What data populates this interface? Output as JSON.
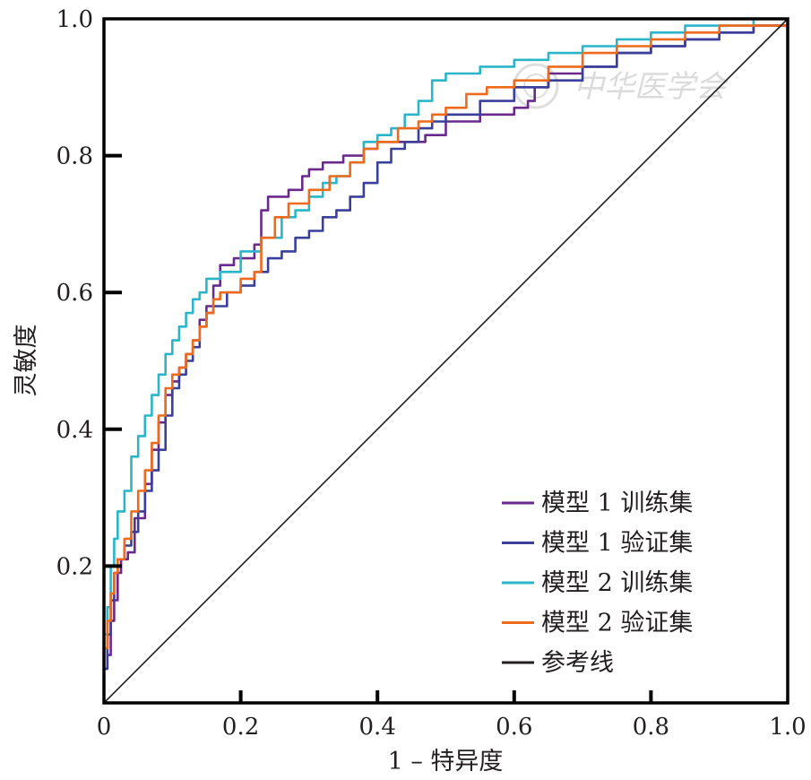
{
  "chart_data": {
    "type": "line",
    "xlabel": "1 – 特异度",
    "ylabel": "灵敏度",
    "xlim": [
      0,
      1
    ],
    "ylim": [
      0,
      1
    ],
    "x_ticks": [
      "0",
      "0.2",
      "0.4",
      "0.6",
      "0.8",
      "1.0"
    ],
    "y_ticks": [
      "0.2",
      "0.4",
      "0.6",
      "0.8",
      "1.0"
    ],
    "grid": false,
    "legend_position": "bottom-right",
    "watermark": "中华医学会",
    "series": [
      {
        "name": "模型 1 训练集",
        "color": "#6a2a8c",
        "points": [
          [
            0,
            0.05
          ],
          [
            0.005,
            0.07
          ],
          [
            0.01,
            0.12
          ],
          [
            0.015,
            0.15
          ],
          [
            0.02,
            0.19
          ],
          [
            0.025,
            0.21
          ],
          [
            0.035,
            0.22
          ],
          [
            0.045,
            0.27
          ],
          [
            0.06,
            0.32
          ],
          [
            0.07,
            0.37
          ],
          [
            0.08,
            0.41
          ],
          [
            0.09,
            0.45
          ],
          [
            0.1,
            0.47
          ],
          [
            0.11,
            0.49
          ],
          [
            0.12,
            0.51
          ],
          [
            0.13,
            0.53
          ],
          [
            0.14,
            0.56
          ],
          [
            0.15,
            0.58
          ],
          [
            0.16,
            0.61
          ],
          [
            0.17,
            0.64
          ],
          [
            0.19,
            0.65
          ],
          [
            0.22,
            0.67
          ],
          [
            0.23,
            0.72
          ],
          [
            0.24,
            0.74
          ],
          [
            0.27,
            0.75
          ],
          [
            0.29,
            0.77
          ],
          [
            0.3,
            0.78
          ],
          [
            0.32,
            0.79
          ],
          [
            0.35,
            0.8
          ],
          [
            0.38,
            0.81
          ],
          [
            0.4,
            0.82
          ],
          [
            0.43,
            0.82
          ],
          [
            0.47,
            0.83
          ],
          [
            0.5,
            0.85
          ],
          [
            0.55,
            0.86
          ],
          [
            0.6,
            0.87
          ],
          [
            0.62,
            0.88
          ],
          [
            0.63,
            0.9
          ],
          [
            0.65,
            0.92
          ],
          [
            0.7,
            0.93
          ],
          [
            0.75,
            0.95
          ],
          [
            0.8,
            0.96
          ],
          [
            0.85,
            0.97
          ],
          [
            0.9,
            0.98
          ],
          [
            0.95,
            0.99
          ],
          [
            1,
            1
          ]
        ]
      },
      {
        "name": "模型 1 验证集",
        "color": "#3a3f9a",
        "points": [
          [
            0,
            0.05
          ],
          [
            0.005,
            0.1
          ],
          [
            0.01,
            0.15
          ],
          [
            0.015,
            0.19
          ],
          [
            0.02,
            0.21
          ],
          [
            0.03,
            0.23
          ],
          [
            0.04,
            0.25
          ],
          [
            0.05,
            0.28
          ],
          [
            0.06,
            0.31
          ],
          [
            0.07,
            0.34
          ],
          [
            0.08,
            0.37
          ],
          [
            0.09,
            0.42
          ],
          [
            0.1,
            0.46
          ],
          [
            0.11,
            0.48
          ],
          [
            0.12,
            0.5
          ],
          [
            0.13,
            0.52
          ],
          [
            0.14,
            0.55
          ],
          [
            0.15,
            0.57
          ],
          [
            0.16,
            0.58
          ],
          [
            0.18,
            0.6
          ],
          [
            0.2,
            0.61
          ],
          [
            0.22,
            0.63
          ],
          [
            0.24,
            0.65
          ],
          [
            0.26,
            0.66
          ],
          [
            0.28,
            0.68
          ],
          [
            0.3,
            0.69
          ],
          [
            0.32,
            0.71
          ],
          [
            0.34,
            0.72
          ],
          [
            0.36,
            0.74
          ],
          [
            0.38,
            0.76
          ],
          [
            0.4,
            0.79
          ],
          [
            0.42,
            0.81
          ],
          [
            0.44,
            0.82
          ],
          [
            0.46,
            0.84
          ],
          [
            0.48,
            0.85
          ],
          [
            0.5,
            0.86
          ],
          [
            0.55,
            0.88
          ],
          [
            0.6,
            0.9
          ],
          [
            0.65,
            0.91
          ],
          [
            0.7,
            0.93
          ],
          [
            0.75,
            0.95
          ],
          [
            0.8,
            0.96
          ],
          [
            0.85,
            0.97
          ],
          [
            0.9,
            0.98
          ],
          [
            0.95,
            0.99
          ],
          [
            1,
            1
          ]
        ]
      },
      {
        "name": "模型 2 训练集",
        "color": "#2ab5c9",
        "points": [
          [
            0,
            0.1
          ],
          [
            0.005,
            0.14
          ],
          [
            0.01,
            0.2
          ],
          [
            0.015,
            0.24
          ],
          [
            0.02,
            0.28
          ],
          [
            0.03,
            0.31
          ],
          [
            0.04,
            0.36
          ],
          [
            0.05,
            0.39
          ],
          [
            0.06,
            0.42
          ],
          [
            0.07,
            0.45
          ],
          [
            0.08,
            0.48
          ],
          [
            0.09,
            0.51
          ],
          [
            0.1,
            0.53
          ],
          [
            0.11,
            0.55
          ],
          [
            0.12,
            0.57
          ],
          [
            0.13,
            0.59
          ],
          [
            0.14,
            0.6
          ],
          [
            0.15,
            0.62
          ],
          [
            0.17,
            0.63
          ],
          [
            0.2,
            0.66
          ],
          [
            0.23,
            0.68
          ],
          [
            0.26,
            0.71
          ],
          [
            0.28,
            0.72
          ],
          [
            0.3,
            0.74
          ],
          [
            0.32,
            0.76
          ],
          [
            0.34,
            0.77
          ],
          [
            0.36,
            0.79
          ],
          [
            0.38,
            0.82
          ],
          [
            0.4,
            0.83
          ],
          [
            0.42,
            0.84
          ],
          [
            0.44,
            0.86
          ],
          [
            0.46,
            0.88
          ],
          [
            0.48,
            0.91
          ],
          [
            0.5,
            0.92
          ],
          [
            0.55,
            0.93
          ],
          [
            0.6,
            0.94
          ],
          [
            0.65,
            0.95
          ],
          [
            0.7,
            0.96
          ],
          [
            0.75,
            0.97
          ],
          [
            0.8,
            0.98
          ],
          [
            0.85,
            0.99
          ],
          [
            0.9,
            0.99
          ],
          [
            0.95,
            1
          ],
          [
            1,
            1
          ]
        ]
      },
      {
        "name": "模型 2 验证集",
        "color": "#ee6a1c",
        "points": [
          [
            0,
            0.08
          ],
          [
            0.005,
            0.12
          ],
          [
            0.01,
            0.16
          ],
          [
            0.015,
            0.19
          ],
          [
            0.02,
            0.21
          ],
          [
            0.03,
            0.24
          ],
          [
            0.04,
            0.28
          ],
          [
            0.05,
            0.31
          ],
          [
            0.06,
            0.34
          ],
          [
            0.07,
            0.38
          ],
          [
            0.08,
            0.42
          ],
          [
            0.09,
            0.46
          ],
          [
            0.1,
            0.48
          ],
          [
            0.11,
            0.49
          ],
          [
            0.12,
            0.51
          ],
          [
            0.13,
            0.53
          ],
          [
            0.14,
            0.55
          ],
          [
            0.15,
            0.57
          ],
          [
            0.16,
            0.59
          ],
          [
            0.17,
            0.6
          ],
          [
            0.2,
            0.62
          ],
          [
            0.22,
            0.63
          ],
          [
            0.23,
            0.68
          ],
          [
            0.25,
            0.71
          ],
          [
            0.27,
            0.73
          ],
          [
            0.3,
            0.75
          ],
          [
            0.33,
            0.77
          ],
          [
            0.36,
            0.79
          ],
          [
            0.38,
            0.81
          ],
          [
            0.4,
            0.82
          ],
          [
            0.43,
            0.84
          ],
          [
            0.46,
            0.85
          ],
          [
            0.48,
            0.86
          ],
          [
            0.5,
            0.87
          ],
          [
            0.53,
            0.89
          ],
          [
            0.56,
            0.9
          ],
          [
            0.6,
            0.91
          ],
          [
            0.65,
            0.93
          ],
          [
            0.7,
            0.95
          ],
          [
            0.75,
            0.96
          ],
          [
            0.8,
            0.97
          ],
          [
            0.85,
            0.98
          ],
          [
            0.9,
            0.99
          ],
          [
            0.95,
            0.99
          ],
          [
            1,
            1
          ]
        ]
      },
      {
        "name": "参考线",
        "color": "#231f20",
        "points": [
          [
            0,
            0
          ],
          [
            1,
            1
          ]
        ]
      }
    ]
  }
}
